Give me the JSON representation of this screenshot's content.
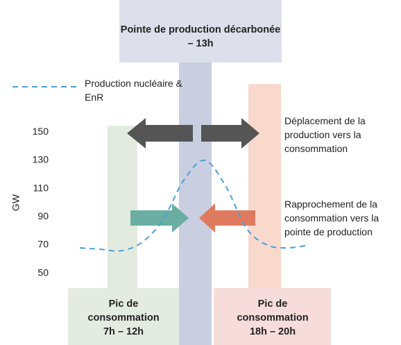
{
  "chart_data": {
    "type": "line",
    "y_label": "GW",
    "categories": [
      null,
      null,
      null,
      null,
      null,
      null,
      null,
      null,
      null,
      null,
      null,
      null
    ],
    "series": [
      {
        "name": "Production nucléaire & EnR",
        "color": "#4a9fd8",
        "values": [
          68,
          67,
          66,
          72,
          88,
          116,
          130,
          112,
          82,
          70,
          68,
          70
        ]
      }
    ],
    "ylim": [
      40,
      160
    ],
    "yticks": [
      50,
      70,
      90,
      110,
      130,
      150
    ],
    "annotations": {
      "peak": "Pointe de production décarbonée – 13h",
      "morning": "Pic de consommation 7h – 12h",
      "evening": "Pic de consommation 18h – 20h",
      "shift": "Déplacement de la production vers la consommation",
      "approach": "Rapprochement de la consommation vers la pointe de production"
    }
  }
}
